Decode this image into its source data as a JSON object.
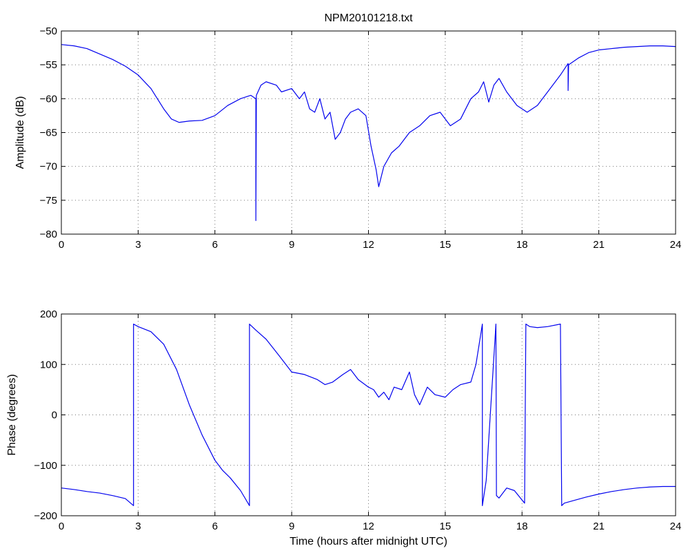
{
  "colors": {
    "series": "#0000ee",
    "axes": "#000000",
    "background": "#ffffff"
  },
  "chart_data": [
    {
      "type": "line",
      "title": "NPM20101218.txt",
      "xlabel": "",
      "ylabel": "Amplitude (dB)",
      "xlim": [
        0,
        24
      ],
      "ylim": [
        -80,
        -50
      ],
      "xticks": [
        0,
        3,
        6,
        9,
        12,
        15,
        18,
        21,
        24
      ],
      "yticks": [
        -80,
        -75,
        -70,
        -65,
        -60,
        -55,
        -50
      ],
      "grid": true,
      "series": [
        {
          "x": [
            0,
            0.5,
            1,
            1.5,
            2,
            2.5,
            3,
            3.5,
            4,
            4.3,
            4.6,
            5,
            5.5,
            6,
            6.5,
            7,
            7.4,
            7.6,
            7.6,
            7.62,
            7.8,
            8,
            8.4,
            8.6,
            9,
            9.3,
            9.5,
            9.7,
            9.9,
            10.1,
            10.3,
            10.5,
            10.7,
            10.9,
            11.1,
            11.3,
            11.6,
            11.9,
            12.1,
            12.3,
            12.4,
            12.6,
            12.9,
            13.2,
            13.6,
            14,
            14.4,
            14.8,
            15.2,
            15.6,
            16,
            16.3,
            16.5,
            16.7,
            16.9,
            17.1,
            17.4,
            17.8,
            18.2,
            18.6,
            19,
            19.5,
            19.8,
            19.8,
            19.82,
            20.2,
            20.6,
            21,
            21.5,
            22,
            22.5,
            23,
            23.5,
            24
          ],
          "y": [
            -52,
            -52.2,
            -52.6,
            -53.4,
            -54.2,
            -55.2,
            -56.5,
            -58.5,
            -61.5,
            -63,
            -63.5,
            -63.3,
            -63.2,
            -62.5,
            -61,
            -60,
            -59.5,
            -60,
            -78,
            -59.5,
            -58,
            -57.5,
            -58,
            -59,
            -58.5,
            -60,
            -59,
            -61.5,
            -62,
            -60,
            -63,
            -62,
            -66,
            -65,
            -63,
            -62,
            -61.5,
            -62.5,
            -67,
            -70.5,
            -73,
            -70,
            -68,
            -67,
            -65,
            -64,
            -62.5,
            -62,
            -64,
            -63,
            -60,
            -59,
            -57.5,
            -60.5,
            -58,
            -57,
            -59,
            -61,
            -62,
            -61,
            -59,
            -56.5,
            -54.8,
            -58.8,
            -55,
            -54,
            -53.2,
            -52.8,
            -52.6,
            -52.4,
            -52.3,
            -52.2,
            -52.2,
            -52.3
          ]
        }
      ]
    },
    {
      "type": "line",
      "title": "",
      "xlabel": "Time (hours after midnight UTC)",
      "ylabel": "Phase (degrees)",
      "xlim": [
        0,
        24
      ],
      "ylim": [
        -200,
        200
      ],
      "xticks": [
        0,
        3,
        6,
        9,
        12,
        15,
        18,
        21,
        24
      ],
      "yticks": [
        -200,
        -100,
        0,
        100,
        200
      ],
      "grid": true,
      "series": [
        {
          "x": [
            0,
            0.5,
            1,
            1.5,
            2,
            2.5,
            2.82,
            2.82,
            3,
            3.5,
            4,
            4.5,
            5,
            5.5,
            6,
            6.3,
            6.6,
            7,
            7.35,
            7.35,
            7.6,
            8,
            8.5,
            9,
            9.5,
            10,
            10.3,
            10.6,
            11,
            11.3,
            11.6,
            12,
            12.2,
            12.4,
            12.6,
            12.8,
            13,
            13.3,
            13.6,
            13.8,
            14,
            14.3,
            14.6,
            15,
            15.3,
            15.6,
            16,
            16.2,
            16.45,
            16.45,
            16.6,
            16.98,
            17.0,
            17.1,
            17.4,
            17.7,
            18.1,
            18.15,
            18.3,
            18.6,
            19,
            19.5,
            19.55,
            19.65,
            20,
            20.5,
            21,
            21.5,
            22,
            22.5,
            23,
            23.5,
            24
          ],
          "y": [
            -145,
            -148,
            -152,
            -155,
            -160,
            -166,
            -180,
            180,
            175,
            165,
            140,
            90,
            20,
            -40,
            -90,
            -110,
            -125,
            -150,
            -180,
            180,
            168,
            150,
            118,
            85,
            80,
            70,
            60,
            65,
            80,
            90,
            70,
            55,
            50,
            35,
            45,
            30,
            55,
            50,
            85,
            40,
            20,
            55,
            40,
            35,
            50,
            60,
            65,
            100,
            180,
            -180,
            -130,
            180,
            -160,
            -165,
            -145,
            -150,
            -175,
            180,
            175,
            173,
            175,
            180,
            -180,
            -175,
            -170,
            -163,
            -157,
            -152,
            -148,
            -145,
            -143,
            -142,
            -142
          ]
        }
      ]
    }
  ]
}
